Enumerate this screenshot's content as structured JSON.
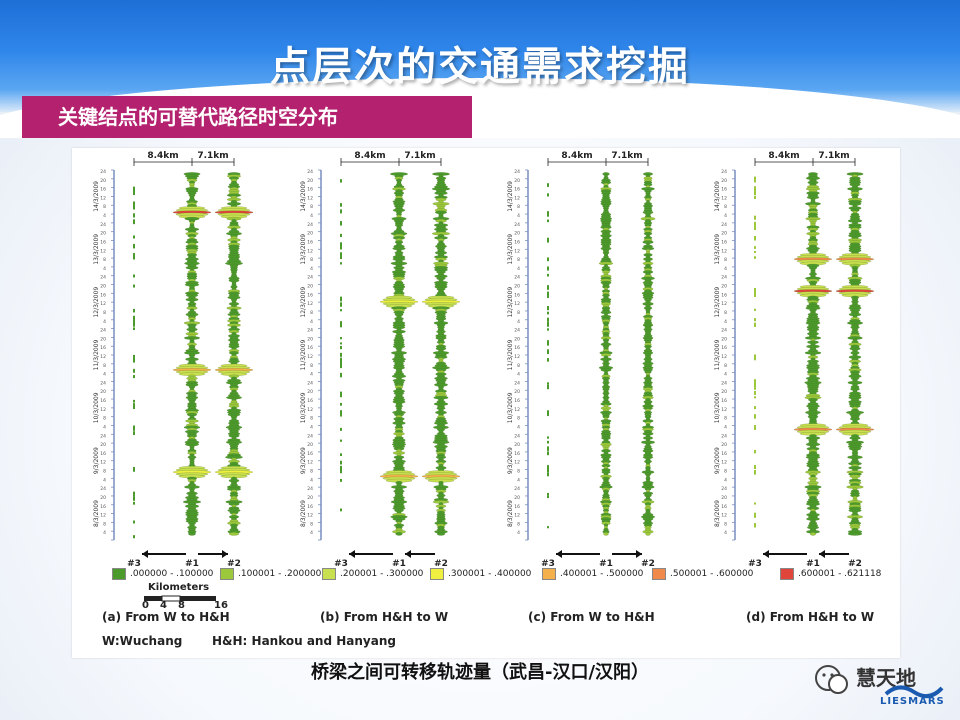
{
  "slide": {
    "title": "点层次的交通需求挖掘",
    "subtitle": "关键结点的可替代路径时空分布",
    "bottom_note": "桥梁之间可转移轨迹量（武昌-汉口/汉阳）"
  },
  "figure": {
    "distance_labels": [
      "8.4km",
      "7.1km"
    ],
    "node_labels": [
      "#3",
      "#1",
      "#2"
    ],
    "dates": [
      "8/3/2009",
      "9/3/2009",
      "10/3/2009",
      "11/3/2009",
      "12/3/2009",
      "13/3/2009",
      "14/3/2009"
    ],
    "hour_ticks": [
      "24",
      "20",
      "16",
      "12",
      "8",
      "4"
    ],
    "legend": [
      {
        "range": ".000000 - .100000",
        "color": "#4a9a2c"
      },
      {
        "range": ".100001 - .200000",
        "color": "#9cc83c"
      },
      {
        "range": ".200001 - .300000",
        "color": "#c8e050"
      },
      {
        "range": ".300001 - .400000",
        "color": "#f0f040"
      },
      {
        "range": ".400001 - .500000",
        "color": "#f4b04a"
      },
      {
        "range": ".500001 - .600000",
        "color": "#ef8a4a"
      },
      {
        "range": ".600001 - .621118",
        "color": "#e0453c"
      }
    ],
    "kilometers_label": "Kilometers",
    "km_ticks": [
      "0",
      "4",
      "8",
      "16"
    ],
    "captions": [
      "(a) From W to H&H",
      "(b) From H&H to W",
      "(c) From W to H&H",
      "(d) From H&H to W"
    ],
    "abbreviations": [
      "W:Wuchang",
      "H&H: Hankou and Hanyang"
    ]
  },
  "logo": {
    "name": "慧天地",
    "english": "LIESMARS"
  }
}
